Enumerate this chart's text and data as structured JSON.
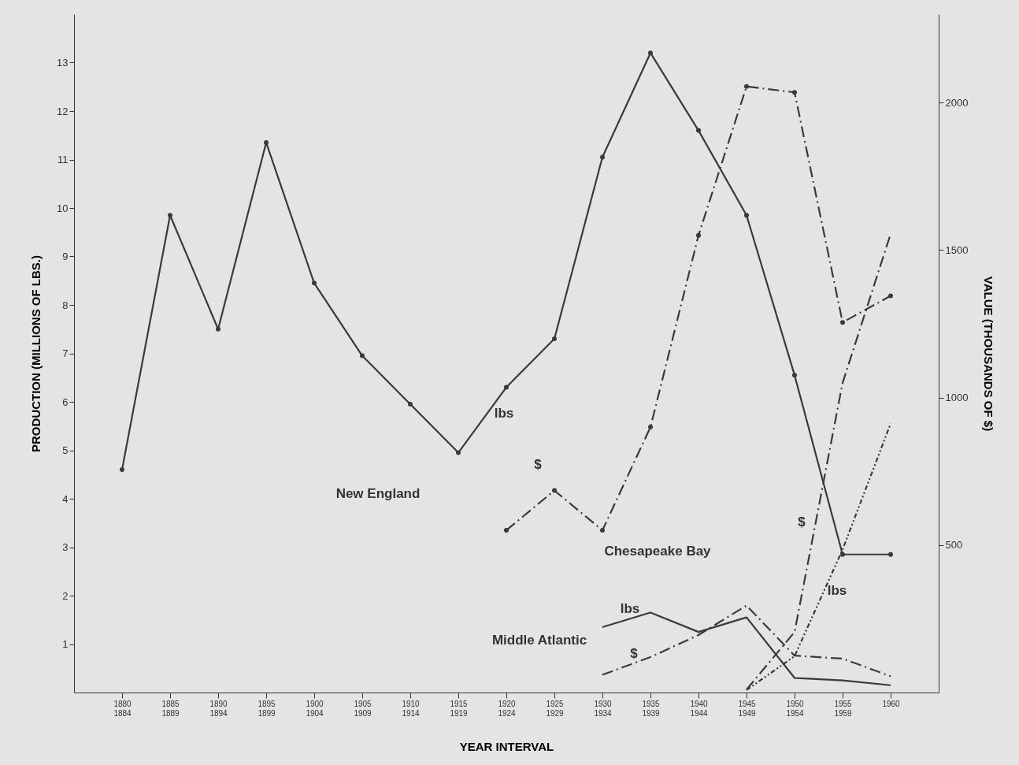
{
  "chart_data": {
    "type": "line",
    "xlabel": "YEAR INTERVAL",
    "ylabel": "PRODUCTION (MILLIONS OF LBS.)",
    "y2label": "VALUE (THOUSANDS OF $)",
    "categories": [
      "1880\n1884",
      "1885\n1889",
      "1890\n1894",
      "1895\n1899",
      "1900\n1904",
      "1905\n1909",
      "1910\n1914",
      "1915\n1919",
      "1920\n1924",
      "1925\n1929",
      "1930\n1934",
      "1935\n1939",
      "1940\n1944",
      "1945\n1949",
      "1950\n1954",
      "1955\n1959",
      "1960"
    ],
    "series": [
      {
        "color": "#3a3a3a",
        "line_style": "solid",
        "marker": "circle",
        "values": [
          4.6,
          9.85,
          7.5,
          11.35,
          8.45,
          6.95,
          5.95,
          4.95,
          6.3,
          7.3,
          11.05,
          13.2,
          11.6,
          9.85,
          6.55,
          2.85,
          2.85
        ]
      },
      {
        "color": "#3a3a3a",
        "line_style": "dashed",
        "marker": "circle",
        "axis": "y2",
        "values": [
          null,
          null,
          null,
          null,
          null,
          null,
          null,
          null,
          550,
          685,
          550,
          900,
          1550,
          2055,
          2035,
          1255,
          1345
        ]
      },
      {
        "color": "#3a3a3a",
        "line_style": "solid",
        "values": [
          null,
          null,
          null,
          null,
          null,
          null,
          null,
          null,
          null,
          null,
          1.35,
          1.65,
          1.25,
          1.55,
          0.3,
          0.25,
          0.15
        ]
      },
      {
        "color": "#3a3a3a",
        "line_style": "dashed",
        "axis": "y2",
        "values": [
          null,
          null,
          null,
          null,
          null,
          null,
          null,
          null,
          null,
          null,
          60,
          120,
          195,
          295,
          125,
          115,
          55
        ]
      },
      {
        "color": "#3a3a3a",
        "line_style": "dotted",
        "values": [
          null,
          null,
          null,
          null,
          null,
          null,
          null,
          null,
          null,
          null,
          null,
          null,
          null,
          0.05,
          0.75,
          2.95,
          5.55
        ]
      },
      {
        "color": "#3a3a3a",
        "line_style": "dashed",
        "axis": "y2",
        "values": [
          null,
          null,
          null,
          null,
          null,
          null,
          null,
          null,
          null,
          null,
          null,
          null,
          null,
          10,
          205,
          1050,
          1555
        ]
      }
    ],
    "annotations": [
      "New England",
      "lbs",
      "$",
      "Chesapeake Bay",
      "$",
      "lbs",
      "Middle Atlantic",
      "lbs",
      "$"
    ],
    "ylim": [
      0,
      14
    ],
    "yticks": [
      1,
      2,
      3,
      4,
      5,
      6,
      7,
      8,
      9,
      10,
      11,
      12,
      13
    ],
    "y2lim": [
      0,
      2300
    ],
    "y2ticks": [
      500,
      1000,
      1500,
      2000
    ],
    "grid": false
  }
}
